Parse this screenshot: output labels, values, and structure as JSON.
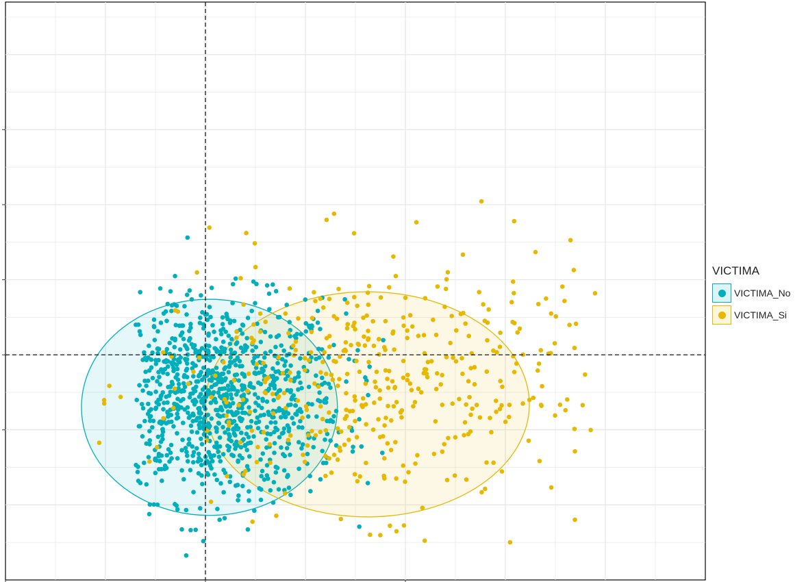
{
  "chart_data": {
    "type": "scatter",
    "grid": true,
    "xlim": [
      -1.0,
      2.5
    ],
    "ylim": [
      -1.5,
      2.35
    ],
    "legend": {
      "title": "VICTIMA",
      "placement": "right",
      "entries": [
        "VICTIMA_No",
        "VICTIMA_Si"
      ]
    },
    "colors": {
      "VICTIMA_No": "#00AFBB",
      "VICTIMA_Si": "#E7B800"
    },
    "reference_lines": {
      "x": 0,
      "y": 0,
      "style": "dashed"
    },
    "confidence_ellipses": [
      {
        "group": "VICTIMA_No",
        "center": [
          0.02,
          -0.35
        ],
        "rx": 0.64,
        "ry": 0.72
      },
      {
        "group": "VICTIMA_Si",
        "center": [
          0.81,
          -0.33
        ],
        "rx": 0.81,
        "ry": 0.75
      }
    ],
    "series": [
      {
        "name": "VICTIMA_No",
        "approx_count": 1000,
        "x_mean": 0.05,
        "x_sd": 0.32,
        "y_mean": -0.3,
        "y_sd": 0.33,
        "x_range": [
          -0.35,
          0.92
        ],
        "y_range": [
          -1.35,
          1.05
        ]
      },
      {
        "name": "VICTIMA_Si",
        "approx_count": 420,
        "x_mean": 0.88,
        "x_sd": 0.58,
        "y_mean": -0.2,
        "y_sd": 0.42,
        "x_range": [
          -0.55,
          1.95
        ],
        "y_range": [
          -1.4,
          1.2
        ]
      }
    ]
  }
}
